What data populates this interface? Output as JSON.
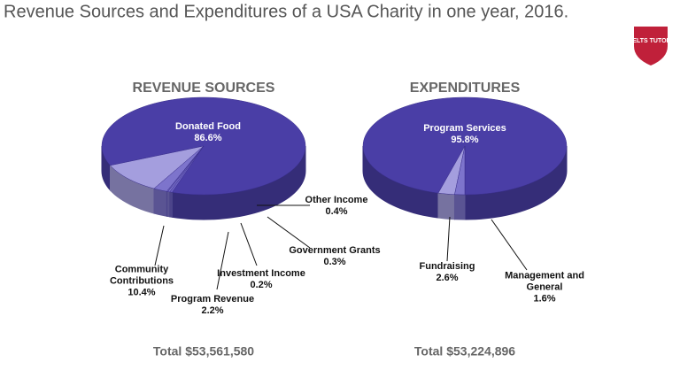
{
  "title": "Revenue Sources and Expenditures of a USA Charity in one year, 2016.",
  "logo": "IELTS TUTOR",
  "chart_data": [
    {
      "type": "pie",
      "title": "REVENUE SOURCES",
      "categories": [
        "Donated Food",
        "Community Contributions",
        "Program Revenue",
        "Investment Income",
        "Government Grants",
        "Other Income"
      ],
      "values": [
        86.6,
        10.4,
        2.2,
        0.2,
        0.3,
        0.4
      ],
      "value_labels": [
        "86.6%",
        "10.4%",
        "2.2%",
        "0.2%",
        "0.3%",
        "0.4%"
      ],
      "colors": [
        "#4a3ea6",
        "#a49ede",
        "#7d74cc",
        "#6a60c0",
        "#7d74cc",
        "#6a60c0"
      ],
      "total": "Total $53,561,580"
    },
    {
      "type": "pie",
      "title": "EXPENDITURES",
      "categories": [
        "Program Services",
        "Fundraising",
        "Management and General"
      ],
      "values": [
        95.8,
        2.6,
        1.6
      ],
      "value_labels": [
        "95.8%",
        "2.6%",
        "1.6%"
      ],
      "colors": [
        "#4a3ea6",
        "#a49ede",
        "#7d74cc"
      ],
      "total": "Total $53,224,896"
    }
  ]
}
